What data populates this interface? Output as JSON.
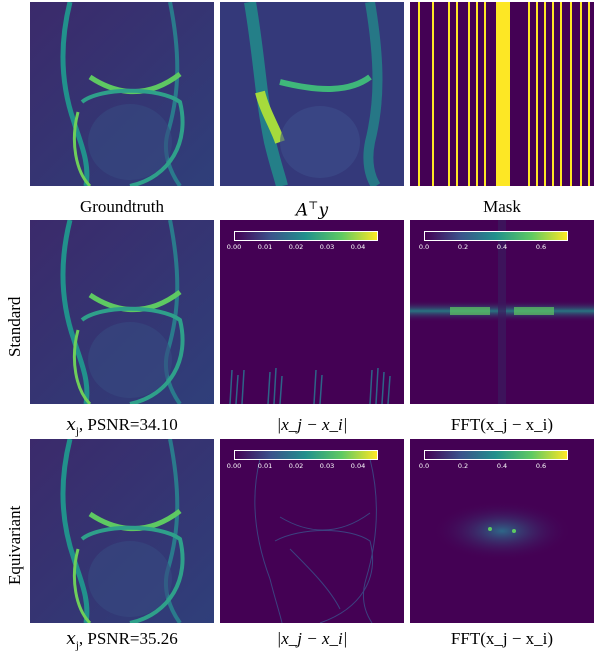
{
  "captions": {
    "groundtruth": "Groundtruth",
    "aty": "A⊤y",
    "mask": "Mask",
    "std_xj": "x_j, PSNR=34.10",
    "std_diff": "|x_j − x_i|",
    "std_fft": "FFT(x_j − x_i)",
    "eq_xj": "x_j, PSNR=35.26",
    "eq_diff": "|x_j − x_i|",
    "eq_fft": "FFT(x_j − x_i)"
  },
  "captionParts": {
    "xj": "x",
    "j": "j",
    "psnr_std": ", PSNR=34.10",
    "psnr_eq": ", PSNR=35.26",
    "A": "A",
    "T": "⊤",
    "y": "y",
    "diff": "|x_j − x_i|",
    "fft": "FFT(x_j − x_i)"
  },
  "row_labels": {
    "standard": "Standard",
    "equivariant": "Equivariant"
  },
  "colorbars": {
    "diff_ticks": [
      "0.00",
      "0.01",
      "0.02",
      "0.03",
      "0.04"
    ],
    "fft_ticks": [
      "0.0",
      "0.2",
      "0.4",
      "0.6"
    ]
  },
  "colors": {
    "background": "#440154",
    "dark": "#3e2a6f",
    "teal": "#21918c",
    "green": "#5ec962",
    "yellow": "#fde725"
  }
}
